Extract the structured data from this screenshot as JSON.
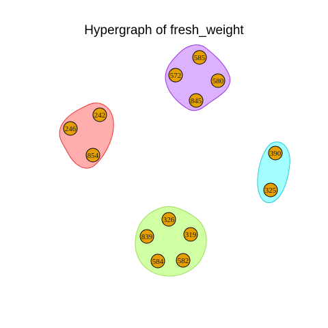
{
  "title": "Hypergraph of fresh_weight",
  "node_color": "#E69F00",
  "node_stroke": "#000000",
  "hyperedges": [
    {
      "id": "red-group",
      "fill": "#FF9999",
      "stroke": "#EE3333",
      "nodes": [
        "242",
        "246",
        "854"
      ]
    },
    {
      "id": "purple-group",
      "fill": "#D8A8FF",
      "stroke": "#9933DD",
      "nodes": [
        "585",
        "572",
        "580",
        "845"
      ]
    },
    {
      "id": "cyan-group",
      "fill": "#99FFFF",
      "stroke": "#22CCDD",
      "nodes": [
        "390",
        "325"
      ]
    },
    {
      "id": "green-group",
      "fill": "#CCFF99",
      "stroke": "#99DD55",
      "nodes": [
        "326",
        "839",
        "319",
        "584",
        "582"
      ]
    }
  ]
}
